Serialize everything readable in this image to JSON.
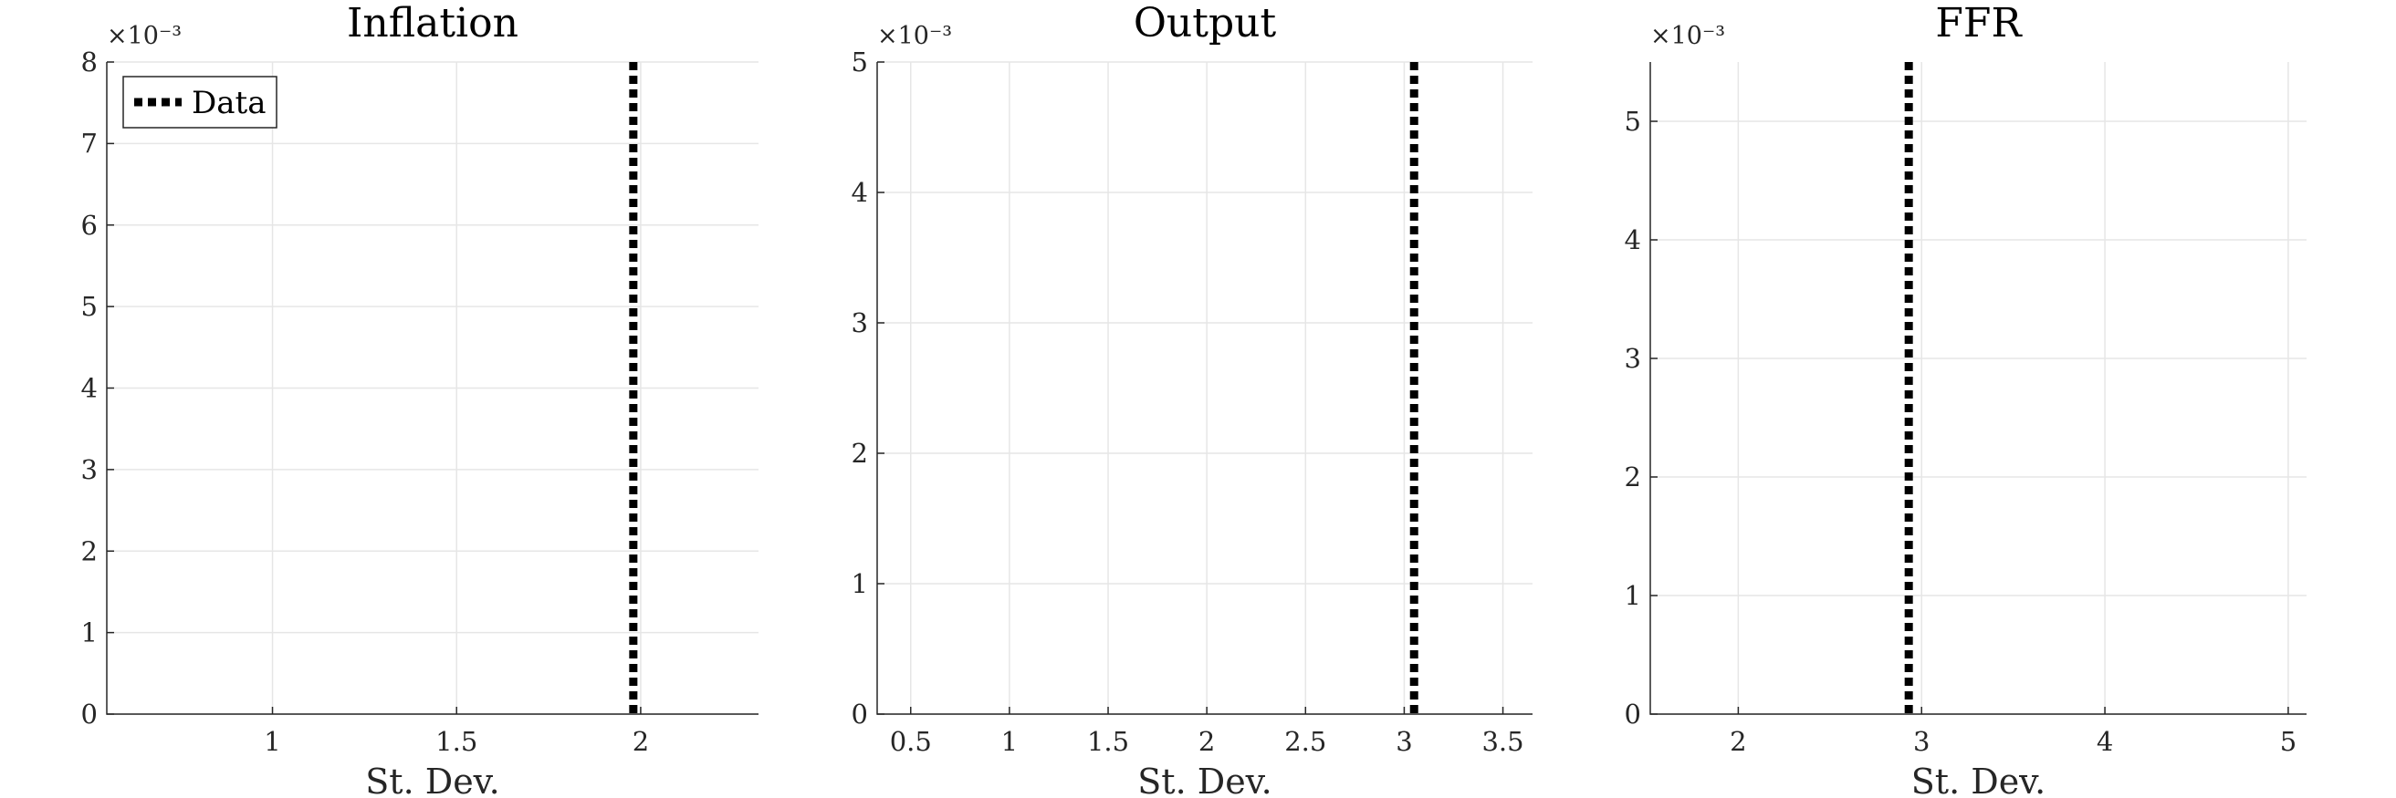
{
  "chart_data": [
    {
      "type": "line",
      "title": "Inflation",
      "xlabel": "St. Dev.",
      "ylabel": "",
      "xlim": [
        0.55,
        2.32
      ],
      "ylim": [
        0,
        8
      ],
      "xticks": [
        1,
        1.5,
        2
      ],
      "xtick_labels": [
        "1",
        "1.5",
        "2"
      ],
      "yticks": [
        0,
        1,
        2,
        3,
        4,
        5,
        6,
        7,
        8
      ],
      "ytick_labels": [
        "0",
        "1",
        "2",
        "3",
        "4",
        "5",
        "6",
        "7",
        "8"
      ],
      "y_exponent_label": "×10⁻³",
      "grid": true,
      "legend": {
        "visible": true,
        "placement": "top-left",
        "entries": [
          "Data"
        ]
      },
      "series": [
        {
          "name": "Data",
          "style": "dotted",
          "color": "#000000",
          "vline_x": 1.98
        }
      ]
    },
    {
      "type": "line",
      "title": "Output",
      "xlabel": "St. Dev.",
      "ylabel": "",
      "xlim": [
        0.33,
        3.65
      ],
      "ylim": [
        0,
        5
      ],
      "xticks": [
        0.5,
        1,
        1.5,
        2,
        2.5,
        3,
        3.5
      ],
      "xtick_labels": [
        "0.5",
        "1",
        "1.5",
        "2",
        "2.5",
        "3",
        "3.5"
      ],
      "yticks": [
        0,
        1,
        2,
        3,
        4,
        5
      ],
      "ytick_labels": [
        "0",
        "1",
        "2",
        "3",
        "4",
        "5"
      ],
      "y_exponent_label": "×10⁻³",
      "grid": true,
      "legend": {
        "visible": false,
        "entries": []
      },
      "series": [
        {
          "name": "",
          "style": "dotted",
          "color": "#000000",
          "vline_x": 3.05
        }
      ]
    },
    {
      "type": "line",
      "title": "FFR",
      "xlabel": "St. Dev.",
      "ylabel": "",
      "xlim": [
        1.52,
        5.1
      ],
      "ylim": [
        0,
        5.5
      ],
      "xticks": [
        2,
        3,
        4,
        5
      ],
      "xtick_labels": [
        "2",
        "3",
        "4",
        "5"
      ],
      "yticks": [
        0,
        1,
        2,
        3,
        4,
        5
      ],
      "ytick_labels": [
        "0",
        "1",
        "2",
        "3",
        "4",
        "5"
      ],
      "y_exponent_label": "×10⁻³",
      "grid": true,
      "legend": {
        "visible": false,
        "entries": []
      },
      "series": [
        {
          "name": "",
          "style": "dotted",
          "color": "#000000",
          "vline_x": 2.93
        }
      ]
    }
  ]
}
